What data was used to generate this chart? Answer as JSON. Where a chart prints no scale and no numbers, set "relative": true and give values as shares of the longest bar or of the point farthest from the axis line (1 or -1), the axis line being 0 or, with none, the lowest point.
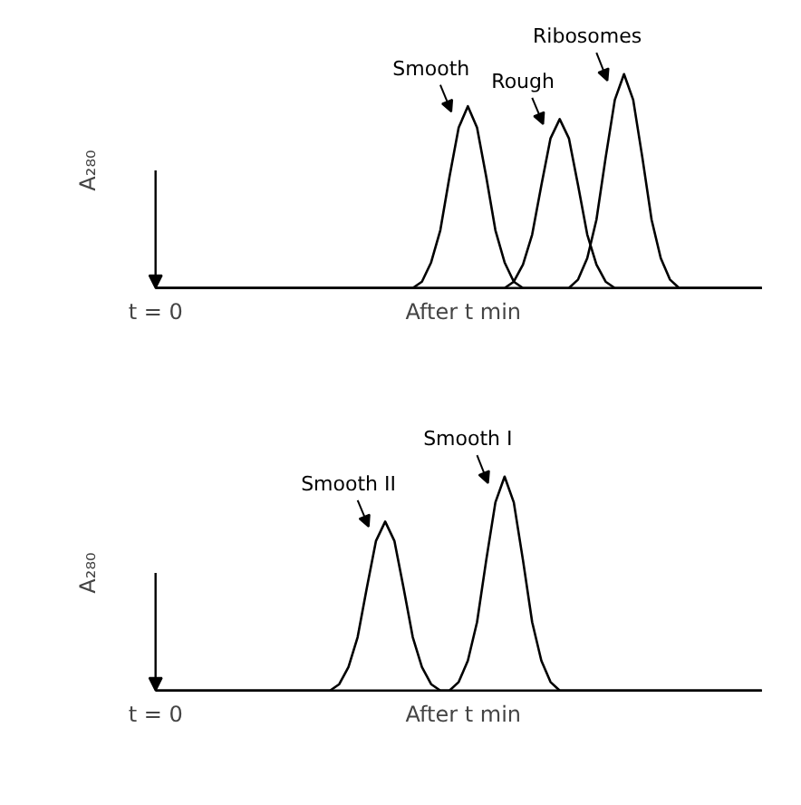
{
  "chart_data": [
    {
      "type": "line",
      "relative": true,
      "ylabel": "A₂₈₀",
      "categories": [
        null,
        null,
        null,
        null,
        null,
        null,
        null,
        null,
        null,
        null,
        null,
        null,
        null,
        null,
        null,
        null,
        null,
        null,
        null,
        null,
        null,
        null,
        null,
        null,
        null,
        null,
        null,
        null,
        null,
        null,
        null,
        null,
        null,
        null,
        null,
        null,
        null,
        null,
        null,
        null,
        null,
        null,
        null,
        null,
        null,
        null,
        null,
        null,
        null,
        null,
        null,
        null,
        null,
        null,
        null,
        null,
        null,
        null,
        null,
        null,
        null,
        null,
        null,
        null,
        null,
        null,
        null
      ],
      "series": [
        {
          "name": "Smooth",
          "color": "#000000",
          "values": [
            0,
            0,
            0,
            0,
            0,
            0,
            0,
            0,
            0,
            0,
            0,
            0,
            0,
            0,
            0,
            0,
            0,
            0,
            0,
            0,
            0,
            0,
            0,
            0,
            0,
            0,
            0,
            0,
            0,
            0.03,
            0.12,
            0.27,
            0.52,
            0.75,
            0.85,
            0.75,
            0.52,
            0.27,
            0.12,
            0.03,
            0,
            0,
            0,
            0,
            0,
            0,
            0,
            0,
            0,
            0,
            0,
            0,
            0,
            0,
            0,
            0,
            0,
            0,
            0,
            0,
            0,
            0,
            0,
            0,
            0,
            0,
            0
          ]
        },
        {
          "name": "Rough",
          "color": "#000000",
          "values": [
            0,
            0,
            0,
            0,
            0,
            0,
            0,
            0,
            0,
            0,
            0,
            0,
            0,
            0,
            0,
            0,
            0,
            0,
            0,
            0,
            0,
            0,
            0,
            0,
            0,
            0,
            0,
            0,
            0,
            0,
            0,
            0,
            0,
            0,
            0,
            0,
            0,
            0,
            0,
            0.03,
            0.11,
            0.25,
            0.48,
            0.7,
            0.79,
            0.7,
            0.48,
            0.25,
            0.11,
            0.03,
            0,
            0,
            0,
            0,
            0,
            0,
            0,
            0,
            0,
            0,
            0,
            0,
            0,
            0,
            0,
            0,
            0
          ]
        },
        {
          "name": "Ribosomes",
          "color": "#000000",
          "values": [
            0,
            0,
            0,
            0,
            0,
            0,
            0,
            0,
            0,
            0,
            0,
            0,
            0,
            0,
            0,
            0,
            0,
            0,
            0,
            0,
            0,
            0,
            0,
            0,
            0,
            0,
            0,
            0,
            0,
            0,
            0,
            0,
            0,
            0,
            0,
            0,
            0,
            0,
            0,
            0,
            0,
            0,
            0,
            0,
            0,
            0,
            0.04,
            0.14,
            0.32,
            0.61,
            0.88,
            1,
            0.88,
            0.61,
            0.32,
            0.14,
            0.04,
            0,
            0,
            0,
            0,
            0,
            0,
            0,
            0,
            0,
            0
          ]
        }
      ],
      "annotations": [
        "t = 0",
        "After t min"
      ],
      "marker": "none",
      "line_style": "solid"
    },
    {
      "type": "line",
      "relative": true,
      "ylabel": "A₂₈₀",
      "categories": [
        null,
        null,
        null,
        null,
        null,
        null,
        null,
        null,
        null,
        null,
        null,
        null,
        null,
        null,
        null,
        null,
        null,
        null,
        null,
        null,
        null,
        null,
        null,
        null,
        null,
        null,
        null,
        null,
        null,
        null,
        null,
        null,
        null,
        null,
        null,
        null,
        null,
        null,
        null,
        null,
        null,
        null,
        null,
        null,
        null,
        null,
        null,
        null,
        null,
        null,
        null,
        null,
        null,
        null,
        null,
        null,
        null,
        null,
        null,
        null,
        null,
        null,
        null,
        null,
        null,
        null,
        null
      ],
      "series": [
        {
          "name": "Smooth II",
          "color": "#000000",
          "values": [
            0,
            0,
            0,
            0,
            0,
            0,
            0,
            0,
            0,
            0,
            0,
            0,
            0,
            0,
            0,
            0,
            0,
            0,
            0,
            0,
            0.03,
            0.11,
            0.25,
            0.48,
            0.7,
            0.79,
            0.7,
            0.48,
            0.25,
            0.11,
            0.03,
            0,
            0,
            0,
            0,
            0,
            0,
            0,
            0,
            0,
            0,
            0,
            0,
            0,
            0,
            0,
            0,
            0,
            0,
            0,
            0,
            0,
            0,
            0,
            0,
            0,
            0,
            0,
            0,
            0,
            0,
            0,
            0,
            0,
            0,
            0,
            0
          ]
        },
        {
          "name": "Smooth I",
          "color": "#000000",
          "values": [
            0,
            0,
            0,
            0,
            0,
            0,
            0,
            0,
            0,
            0,
            0,
            0,
            0,
            0,
            0,
            0,
            0,
            0,
            0,
            0,
            0,
            0,
            0,
            0,
            0,
            0,
            0,
            0,
            0,
            0,
            0,
            0,
            0,
            0.04,
            0.14,
            0.32,
            0.61,
            0.88,
            1,
            0.88,
            0.61,
            0.32,
            0.14,
            0.04,
            0,
            0,
            0,
            0,
            0,
            0,
            0,
            0,
            0,
            0,
            0,
            0,
            0,
            0,
            0,
            0,
            0,
            0,
            0,
            0,
            0,
            0,
            0
          ]
        }
      ],
      "annotations": [
        "t = 0",
        "After t min"
      ],
      "marker": "none",
      "line_style": "solid"
    }
  ]
}
